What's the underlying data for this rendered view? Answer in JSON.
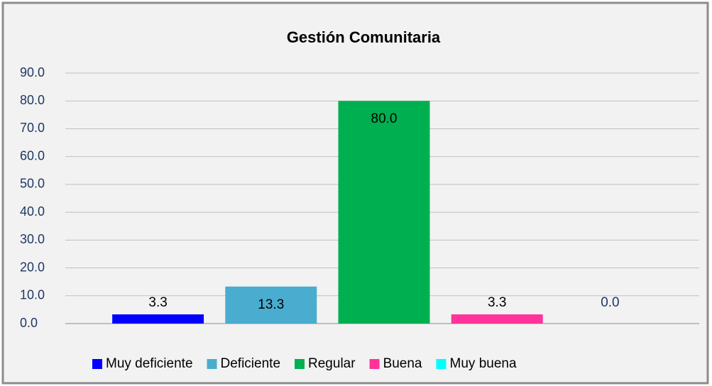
{
  "chart_data": {
    "type": "bar",
    "title": "Gestión Comunitaria",
    "categories": [
      "Muy deficiente",
      "Deficiente",
      "Regular",
      "Buena",
      "Muy buena"
    ],
    "values": [
      3.3,
      13.3,
      80,
      3.3,
      0
    ],
    "value_labels": [
      "3.3",
      "13.3",
      "80.0",
      "3.3",
      "0.0"
    ],
    "colors": [
      "#0000ff",
      "#4aaccf",
      "#00b050",
      "#ff3399",
      "#00ffff"
    ],
    "ylim": [
      0,
      90
    ],
    "yticks": [
      {
        "value": 0,
        "label": "0.0"
      },
      {
        "value": 10,
        "label": "10.0"
      },
      {
        "value": 20,
        "label": "20.0"
      },
      {
        "value": 30,
        "label": "30.0"
      },
      {
        "value": 40,
        "label": "40.0"
      },
      {
        "value": 50,
        "label": "50.0"
      },
      {
        "value": 60,
        "label": "60.0"
      },
      {
        "value": 70,
        "label": "70.0"
      },
      {
        "value": 80,
        "label": "80.0"
      },
      {
        "value": 90,
        "label": "90.0"
      }
    ],
    "grid": true,
    "legend": "bottom"
  }
}
